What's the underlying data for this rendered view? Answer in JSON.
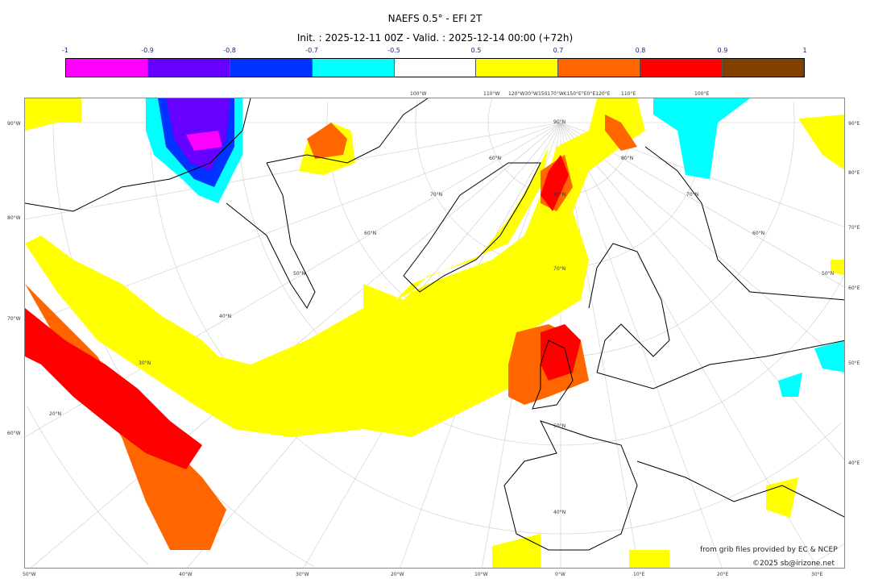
{
  "title": "NAEFS 0.5° - EFI 2T",
  "subtitle": "Init. : 2025-12-11 00Z - Valid. : 2025-12-14 00:00 (+72h)",
  "colorbar": {
    "ticks": [
      "-1",
      "-0.9",
      "-0.8",
      "-0.7",
      "-0.5",
      "0.5",
      "0.7",
      "0.8",
      "0.9",
      "1"
    ],
    "colors": [
      "#ff00ff",
      "#6600ff",
      "#0033ff",
      "#00ffff",
      "#ffffff",
      "#ffff00",
      "#ff6600",
      "#ff0000",
      "#804000"
    ]
  },
  "axes": {
    "top": [
      "100°W",
      "110°W",
      "120°W30°W150170°W€150°E°E0°E120°E",
      "110°E",
      "100°E"
    ],
    "left": [
      "90°W",
      "80°W",
      "70°W",
      "60°W"
    ],
    "right": [
      "90°E",
      "80°E",
      "70°E",
      "60°E",
      "50°E",
      "40°E"
    ],
    "bottom": [
      "50°W",
      "40°W",
      "30°W",
      "20°W",
      "10°W",
      "0°W",
      "10°E",
      "20°E",
      "30°E"
    ],
    "lat": [
      "90°N",
      "80°N",
      "80°N",
      "70°N",
      "70°N",
      "70°N",
      "60°N",
      "60°N",
      "60°N",
      "50°N",
      "50°N",
      "50°N",
      "40°N",
      "40°N",
      "30°N",
      "20°N"
    ]
  },
  "attribution": {
    "source": "from grib files provided by EC & NCEP",
    "copyright": "©2025 sb@irizone.net"
  }
}
